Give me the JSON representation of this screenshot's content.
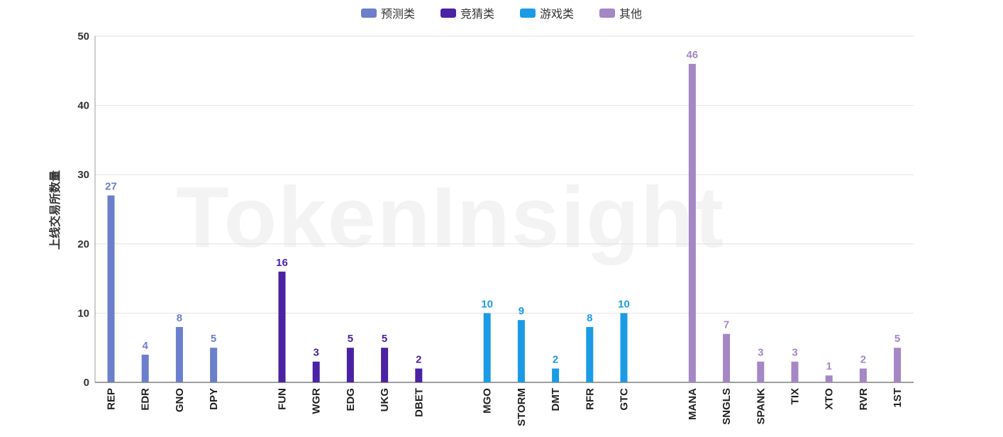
{
  "watermark": "TokenInsight",
  "chart_data": {
    "type": "bar",
    "ylabel": "上线交易所数量",
    "xlabel": "",
    "ylim": [
      0,
      50
    ],
    "yticks": [
      0,
      10,
      20,
      30,
      40,
      50
    ],
    "grid": true,
    "legend_position": "top-center",
    "series": [
      {
        "name": "预测类",
        "color": "#6b7fcc",
        "categories": [
          "REP",
          "EDR",
          "GNO",
          "DPY"
        ],
        "values": [
          27,
          4,
          8,
          5
        ]
      },
      {
        "name": "竞猜类",
        "color": "#4a22a3",
        "categories": [
          "FUN",
          "WGR",
          "EDG",
          "UKG",
          "DBET"
        ],
        "values": [
          16,
          3,
          5,
          5,
          2
        ]
      },
      {
        "name": "游戏类",
        "color": "#1b9be6",
        "categories": [
          "MGO",
          "STORM",
          "DMT",
          "RFR",
          "GTC"
        ],
        "values": [
          10,
          9,
          2,
          8,
          10
        ]
      },
      {
        "name": "其他",
        "color": "#a487c4",
        "categories": [
          "MANA",
          "SNGLS",
          "SPANK",
          "TIX",
          "XTO",
          "RVR",
          "1ST"
        ],
        "values": [
          46,
          7,
          3,
          3,
          1,
          2,
          5
        ]
      }
    ]
  }
}
